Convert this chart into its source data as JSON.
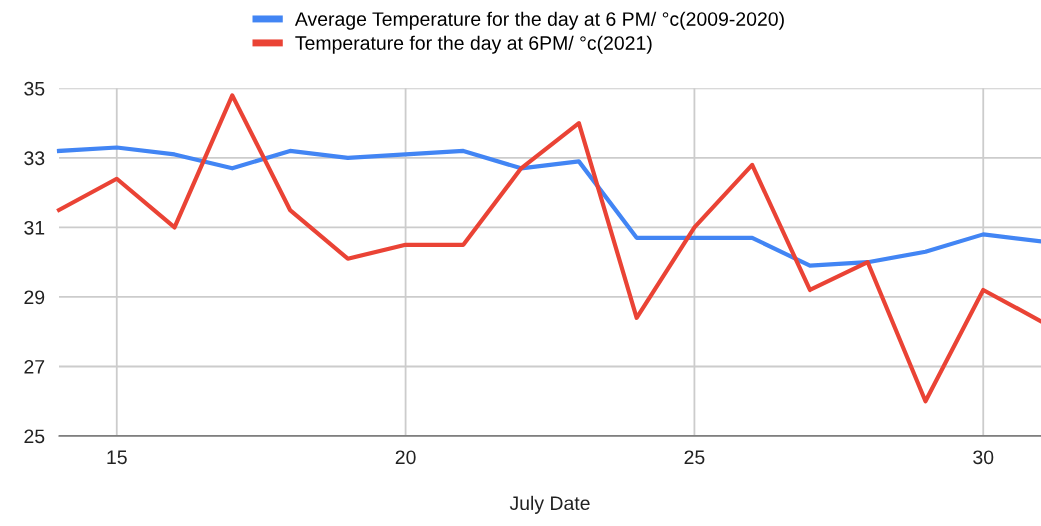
{
  "chart_data": {
    "type": "line",
    "xlabel": "July Date",
    "x": [
      14,
      15,
      16,
      17,
      18,
      19,
      20,
      21,
      22,
      23,
      24,
      25,
      26,
      27,
      28,
      29,
      30,
      31
    ],
    "series": [
      {
        "name": "Average Temperature for the day at 6 PM/ °c(2009-2020)",
        "color": "#4285f4",
        "values": [
          33.2,
          33.3,
          33.1,
          32.7,
          33.2,
          33.0,
          33.1,
          33.2,
          32.7,
          32.9,
          30.7,
          30.7,
          30.7,
          29.9,
          30.0,
          30.3,
          30.8,
          30.6
        ]
      },
      {
        "name": "Temperature for the day at 6PM/ °c(2021)",
        "color": "#ea4335",
        "values": [
          31.5,
          32.4,
          31.0,
          34.8,
          31.5,
          30.1,
          30.5,
          30.5,
          32.7,
          34.0,
          28.4,
          31.0,
          32.8,
          29.2,
          30.0,
          26.0,
          29.2,
          28.3
        ]
      }
    ],
    "xlim": [
      14,
      31
    ],
    "xticks": [
      15,
      20,
      25,
      30
    ],
    "ylim": [
      25,
      35
    ],
    "yticks": [
      25,
      27,
      29,
      31,
      33,
      35
    ],
    "grid": true,
    "legend": "top",
    "marker": "none",
    "line_style": "solid"
  }
}
